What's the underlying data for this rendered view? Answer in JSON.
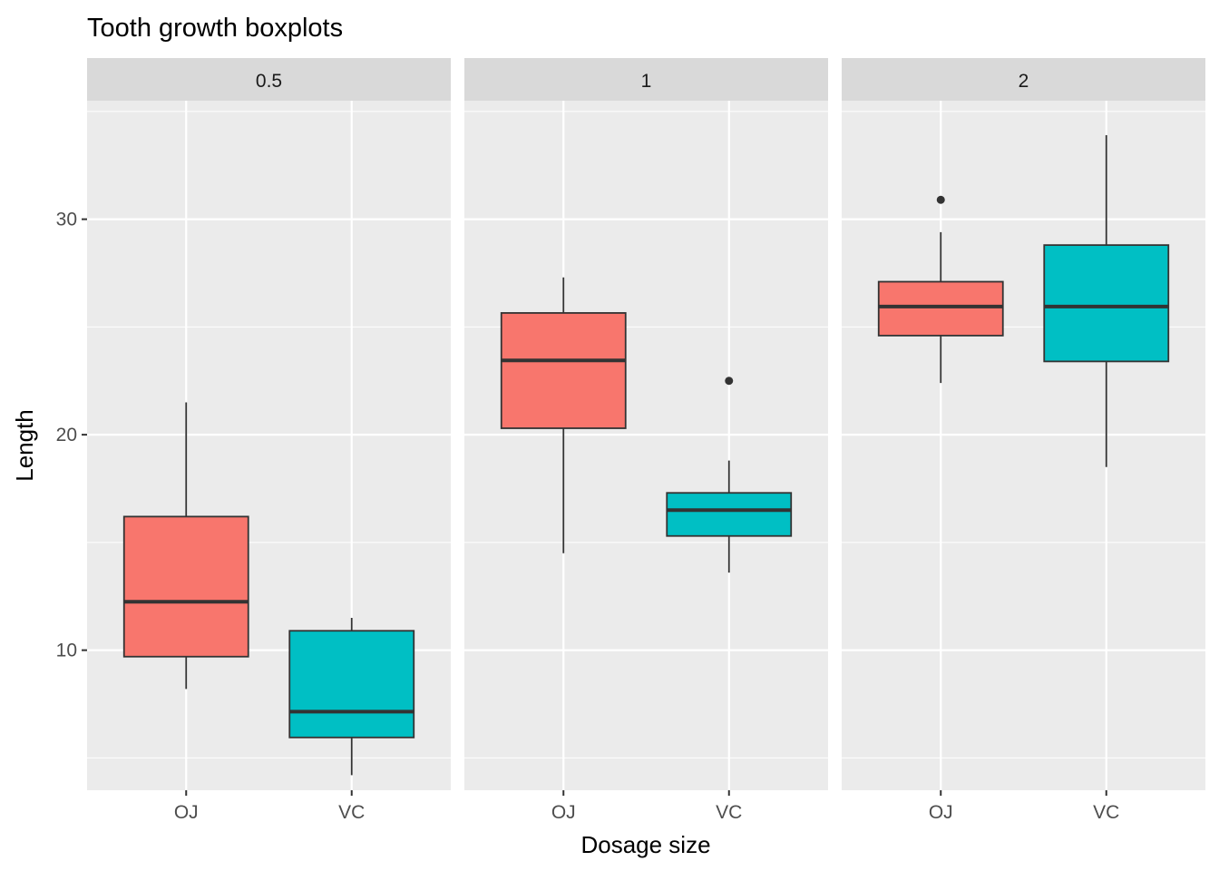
{
  "chart_data": {
    "type": "boxplot",
    "title": "Tooth growth boxplots",
    "xlabel": "Dosage size",
    "ylabel": "Length",
    "ylim": [
      3.5,
      35.5
    ],
    "yticks": [
      10,
      20,
      30
    ],
    "grid": true,
    "categories": [
      "OJ",
      "VC"
    ],
    "colors": {
      "OJ": "#F8766D",
      "VC": "#00BFC4"
    },
    "panels": [
      {
        "label": "0.5",
        "boxes": [
          {
            "category": "OJ",
            "whisker_low": 8.2,
            "q1": 9.7,
            "median": 12.25,
            "q3": 16.2,
            "whisker_high": 21.5,
            "outliers": []
          },
          {
            "category": "VC",
            "whisker_low": 4.2,
            "q1": 5.95,
            "median": 7.15,
            "q3": 10.9,
            "whisker_high": 11.5,
            "outliers": []
          }
        ]
      },
      {
        "label": "1",
        "boxes": [
          {
            "category": "OJ",
            "whisker_low": 14.5,
            "q1": 20.3,
            "median": 23.45,
            "q3": 25.65,
            "whisker_high": 27.3,
            "outliers": []
          },
          {
            "category": "VC",
            "whisker_low": 13.6,
            "q1": 15.3,
            "median": 16.5,
            "q3": 17.3,
            "whisker_high": 18.8,
            "outliers": [
              22.5
            ]
          }
        ]
      },
      {
        "label": "2",
        "boxes": [
          {
            "category": "OJ",
            "whisker_low": 22.4,
            "q1": 24.6,
            "median": 25.95,
            "q3": 27.1,
            "whisker_high": 29.4,
            "outliers": [
              30.9
            ]
          },
          {
            "category": "VC",
            "whisker_low": 18.5,
            "q1": 23.4,
            "median": 25.95,
            "q3": 28.8,
            "whisker_high": 33.9,
            "outliers": []
          }
        ]
      }
    ]
  }
}
